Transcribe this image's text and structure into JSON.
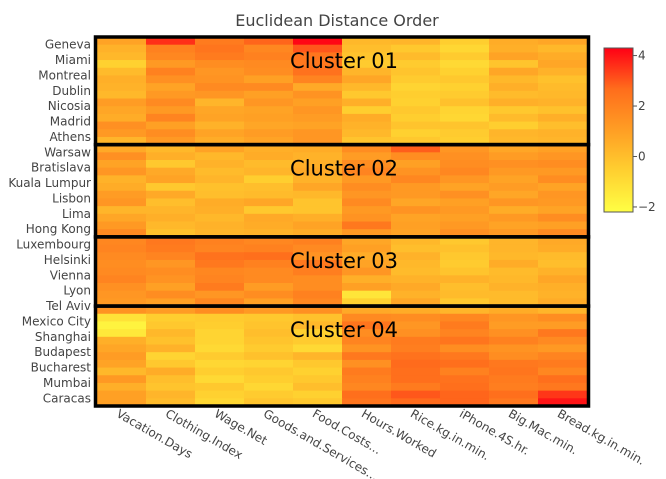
{
  "chart_data": {
    "type": "heatmap",
    "title": "Euclidean Distance Order",
    "x": [
      "Vacation.Days",
      "Clothing.Index",
      "Wage.Net",
      "Goods.and.Services...",
      "Food.Costs...",
      "Hours.Worked",
      "Rice.kg.in.min.",
      "iPhone.4S.hr.",
      "Big.Mac.min.",
      "Bread.kg.in.min."
    ],
    "y_labels": [
      "Geneva",
      "Miami",
      "Montreal",
      "Dublin",
      "Nicosia",
      "Madrid",
      "Athens",
      "Warsaw",
      "Bratislava",
      "Kuala Lumpur",
      "Lisbon",
      "Lima",
      "Hong Kong",
      "Luxembourg",
      "Helsinki",
      "Vienna",
      "Lyon",
      "Tel Aviv",
      "Mexico City",
      "Shanghai",
      "Budapest",
      "Bucharest",
      "Mumbai",
      "Caracas"
    ],
    "rows_per_label": 2,
    "colorbar": {
      "min": -2.2,
      "max": 4.3,
      "ticks": [
        4,
        2,
        0,
        -2
      ]
    },
    "colors": {
      "low": "#ffff44",
      "mid1": "#ffd030",
      "mid2": "#ff9e24",
      "mid3": "#ff6d1c",
      "high": "#ff0015"
    },
    "clusters": [
      {
        "label": "Cluster 01",
        "row_start": 0,
        "row_end": 13
      },
      {
        "label": "Cluster 02",
        "row_start": 14,
        "row_end": 25
      },
      {
        "label": "Cluster 03",
        "row_start": 26,
        "row_end": 34
      },
      {
        "label": "Cluster 04",
        "row_start": 35,
        "row_end": 47
      }
    ],
    "z": [
      [
        0.9,
        3.6,
        2.2,
        2.8,
        4.2,
        0.2,
        0.3,
        -0.5,
        0.6,
        0.8
      ],
      [
        0.4,
        2.0,
        2.4,
        1.8,
        3.0,
        0.0,
        -0.3,
        -0.8,
        0.5,
        0.2
      ],
      [
        0.2,
        1.8,
        2.2,
        2.0,
        2.4,
        -0.2,
        0.1,
        -0.4,
        0.9,
        0.6
      ],
      [
        -0.6,
        1.2,
        1.6,
        1.7,
        2.3,
        -0.4,
        -0.4,
        -0.9,
        -0.2,
        0.8
      ],
      [
        0.1,
        2.0,
        1.3,
        1.6,
        2.5,
        0.3,
        -0.2,
        -0.6,
        0.8,
        0.4
      ],
      [
        0.5,
        1.5,
        1.4,
        1.0,
        1.9,
        0.8,
        -0.4,
        -0.3,
        0.2,
        -0.1
      ],
      [
        0.4,
        0.9,
        1.7,
        1.7,
        0.7,
        0.2,
        -0.7,
        -0.6,
        0.5,
        0.1
      ],
      [
        0.2,
        1.2,
        1.3,
        1.0,
        1.4,
        -0.3,
        -0.5,
        -0.4,
        0.1,
        0.2
      ],
      [
        1.1,
        1.7,
        0.3,
        1.3,
        1.0,
        0.5,
        -0.6,
        -0.1,
        0.5,
        0.4
      ],
      [
        0.8,
        1.2,
        0.8,
        0.9,
        1.3,
        -0.5,
        -0.3,
        -0.7,
        -0.3,
        -0.1
      ],
      [
        0.6,
        1.9,
        0.9,
        1.0,
        1.1,
        0.6,
        -0.5,
        -0.8,
        0.1,
        0.5
      ],
      [
        1.5,
        1.0,
        0.4,
        0.8,
        0.9,
        0.4,
        -0.2,
        -0.2,
        -0.5,
        0.0
      ],
      [
        1.2,
        1.6,
        0.9,
        1.1,
        1.3,
        0.2,
        -0.6,
        -0.4,
        0.3,
        0.4
      ],
      [
        0.3,
        1.2,
        0.6,
        0.9,
        1.3,
        -0.2,
        -0.3,
        -0.5,
        0.2,
        0.3
      ],
      [
        0.7,
        0.2,
        0.9,
        0.5,
        0.6,
        1.6,
        2.9,
        1.3,
        0.8,
        1.0
      ],
      [
        1.5,
        0.5,
        0.2,
        0.6,
        0.4,
        1.1,
        1.6,
        1.5,
        1.1,
        1.3
      ],
      [
        0.9,
        -0.3,
        0.4,
        0.1,
        0.5,
        1.6,
        1.0,
        1.6,
        1.5,
        1.6
      ],
      [
        1.3,
        0.7,
        0.1,
        0.3,
        0.7,
        1.9,
        1.4,
        1.8,
        1.2,
        1.2
      ],
      [
        0.4,
        0.9,
        0.3,
        -0.5,
        0.4,
        1.2,
        1.8,
        1.3,
        0.9,
        1.6
      ],
      [
        0.6,
        -0.3,
        -0.1,
        0.0,
        0.8,
        1.6,
        1.2,
        0.9,
        1.1,
        0.9
      ],
      [
        1.1,
        0.7,
        0.0,
        0.1,
        0.2,
        1.3,
        1.2,
        1.5,
        0.8,
        1.3
      ],
      [
        1.3,
        0.0,
        0.6,
        0.8,
        -0.2,
        1.7,
        0.8,
        1.0,
        1.3,
        1.2
      ],
      [
        0.3,
        0.3,
        0.5,
        -0.3,
        -0.2,
        1.2,
        1.4,
        1.2,
        0.6,
        0.9
      ],
      [
        0.8,
        0.5,
        0.2,
        0.7,
        0.5,
        1.4,
        0.9,
        1.0,
        1.2,
        1.6
      ],
      [
        1.2,
        0.2,
        0.4,
        0.6,
        0.9,
        2.3,
        1.0,
        1.2,
        0.9,
        1.0
      ],
      [
        1.7,
        -0.1,
        0.3,
        0.4,
        0.6,
        1.2,
        0.9,
        1.5,
        1.2,
        1.7
      ],
      [
        1.8,
        2.3,
        2.0,
        1.8,
        2.0,
        0.8,
        0.2,
        -0.3,
        0.3,
        0.7
      ],
      [
        1.9,
        2.2,
        1.9,
        2.0,
        1.7,
        1.0,
        0.0,
        -0.1,
        0.3,
        0.6
      ],
      [
        1.7,
        1.9,
        2.5,
        2.6,
        1.4,
        0.6,
        0.4,
        -0.3,
        0.2,
        0.1
      ],
      [
        1.6,
        1.3,
        2.3,
        2.0,
        2.3,
        0.9,
        0.2,
        -0.4,
        0.6,
        0.0
      ],
      [
        1.7,
        1.6,
        1.8,
        1.7,
        2.1,
        1.3,
        0.1,
        -0.2,
        0.1,
        0.4
      ],
      [
        1.9,
        1.4,
        1.9,
        1.7,
        1.6,
        0.5,
        0.4,
        0.4,
        0.2,
        0.8
      ],
      [
        1.5,
        1.0,
        2.2,
        1.1,
        1.6,
        1.0,
        0.7,
        0.0,
        0.4,
        0.5
      ],
      [
        1.3,
        1.6,
        1.3,
        1.6,
        2.0,
        -1.3,
        0.4,
        0.1,
        0.1,
        0.4
      ],
      [
        1.2,
        1.0,
        1.8,
        1.0,
        1.8,
        -0.6,
        0.8,
        -0.3,
        0.1,
        0.6
      ],
      [
        1.4,
        1.1,
        1.6,
        1.2,
        1.5,
        0.7,
        0.6,
        0.3,
        0.6,
        0.3
      ],
      [
        -1.2,
        -0.5,
        -0.4,
        -0.3,
        -0.1,
        1.7,
        1.6,
        1.8,
        1.3,
        1.6
      ],
      [
        -1.8,
        -0.3,
        -0.5,
        -0.2,
        0.2,
        2.4,
        1.3,
        2.2,
        1.1,
        1.1
      ],
      [
        -1.4,
        0.2,
        -0.7,
        0.0,
        -0.6,
        1.6,
        1.5,
        1.9,
        1.5,
        2.3
      ],
      [
        0.5,
        -0.1,
        -0.7,
        -0.2,
        -0.4,
        1.9,
        2.2,
        2.4,
        2.0,
        1.7
      ],
      [
        0.8,
        0.4,
        -0.9,
        -0.4,
        -0.9,
        1.4,
        2.1,
        1.6,
        1.4,
        1.2
      ],
      [
        1.1,
        -0.7,
        -0.4,
        -0.1,
        0.3,
        2.3,
        2.5,
        2.3,
        1.6,
        1.9
      ],
      [
        0.9,
        -0.3,
        -0.8,
        -0.7,
        -0.3,
        1.5,
        2.7,
        2.6,
        2.3,
        2.2
      ],
      [
        0.2,
        0.6,
        -0.5,
        -0.3,
        -0.6,
        2.2,
        2.6,
        2.0,
        2.4,
        1.8
      ],
      [
        1.2,
        0.0,
        -0.9,
        -0.5,
        -0.3,
        2.0,
        2.6,
        2.5,
        2.2,
        2.6
      ],
      [
        0.5,
        -0.2,
        -0.3,
        -0.8,
        0.0,
        1.8,
        2.2,
        2.6,
        2.1,
        2.3
      ],
      [
        1.0,
        0.3,
        -0.6,
        -0.4,
        -0.6,
        2.6,
        3.0,
        2.8,
        2.6,
        3.5
      ],
      [
        1.0,
        0.1,
        -0.8,
        -0.2,
        -0.3,
        2.4,
        2.7,
        2.8,
        2.3,
        4.0
      ]
    ]
  }
}
